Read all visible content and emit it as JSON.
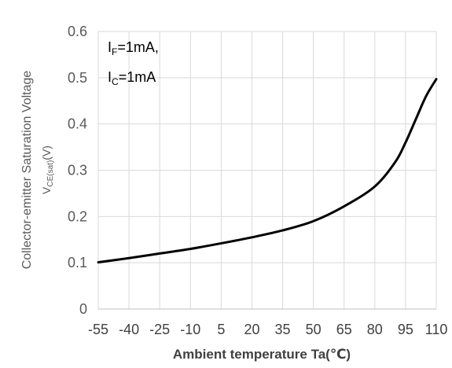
{
  "chart_data": {
    "type": "line",
    "title": "",
    "xlabel": "Ambient temperature Ta(℃)",
    "ylabel_main": "Collector-emitter Saturation Voltage",
    "ylabel_symbol_main": "V",
    "ylabel_symbol_sub": "CE(sat)",
    "ylabel_unit": "(V)",
    "annotation": {
      "line1_main": "I",
      "line1_sub": "F",
      "line1_rest": "=1mA,",
      "line2_main": "I",
      "line2_sub": "C",
      "line2_rest": "=1mA"
    },
    "x_ticks": [
      "-55",
      "-40",
      "-25",
      "-10",
      "5",
      "20",
      "35",
      "50",
      "65",
      "80",
      "95",
      "110"
    ],
    "y_ticks": [
      "0",
      "0.1",
      "0.2",
      "0.3",
      "0.4",
      "0.5",
      "0.6"
    ],
    "xlim": [
      -55,
      110
    ],
    "ylim": [
      0,
      0.6
    ],
    "grid": true,
    "line_color": "#000000",
    "grid_color": "#d9d9d9",
    "series": [
      {
        "x": [
          -55,
          -40,
          -25,
          -10,
          5,
          20,
          35,
          50,
          65,
          80,
          90,
          95,
          100,
          105,
          110
        ],
        "y": [
          0.101,
          0.11,
          0.12,
          0.13,
          0.142,
          0.155,
          0.17,
          0.19,
          0.222,
          0.265,
          0.318,
          0.36,
          0.41,
          0.46,
          0.497
        ]
      }
    ]
  }
}
